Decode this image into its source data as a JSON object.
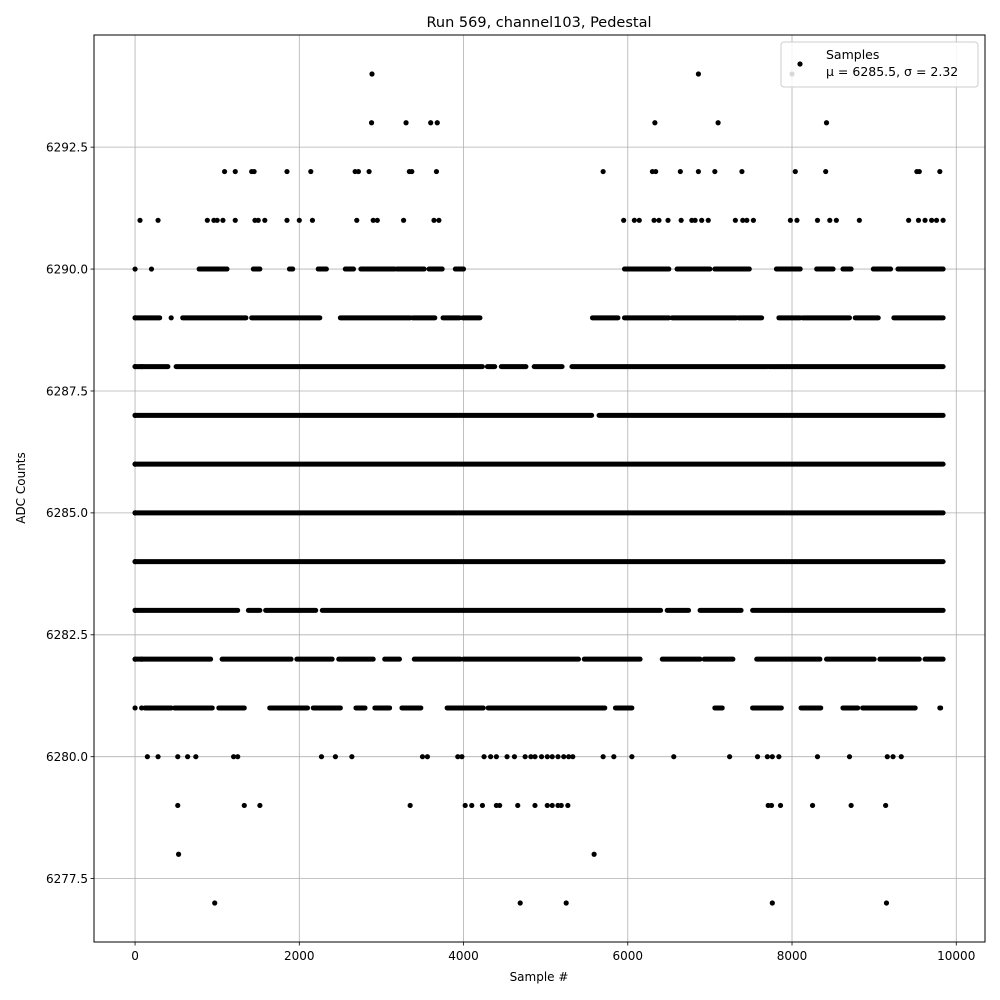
{
  "chart_data": {
    "type": "scatter",
    "title": "Run 569, channel103, Pedestal",
    "xlabel": "Sample #",
    "ylabel": "ADC Counts",
    "xlim": [
      -500,
      10350
    ],
    "ylim": [
      6276.2,
      6294.8
    ],
    "x_ticks": [
      0,
      2000,
      4000,
      6000,
      8000,
      10000
    ],
    "x_tick_labels": [
      "0",
      "2000",
      "4000",
      "6000",
      "8000",
      "10000"
    ],
    "y_ticks": [
      6277.5,
      6280.0,
      6282.5,
      6285.0,
      6287.5,
      6290.0,
      6292.5
    ],
    "y_tick_labels": [
      "6277.5",
      "6280.0",
      "6282.5",
      "6285.0",
      "6287.5",
      "6290.0",
      "6292.5"
    ],
    "grid": true,
    "legend_position": "top-right",
    "marker_color": "#000000",
    "series": [
      {
        "name": "Samples",
        "levels": [
          {
            "y": 6294,
            "x": [
              2885,
              6860,
              8000
            ]
          },
          {
            "y": 6293,
            "x": [
              2880,
              3300,
              3600,
              3680,
              6330,
              7100,
              8420
            ]
          },
          {
            "y": 6292,
            "x": [
              1090,
              1220,
              1420,
              1450,
              1850,
              2140,
              2680,
              2720,
              2850,
              3340,
              3370,
              3670,
              5700,
              6300,
              6340,
              6640,
              6860,
              7060,
              7390,
              8040,
              8410,
              9520,
              9550,
              9800
            ]
          },
          {
            "y": 6291,
            "x": [
              60,
              280,
              880,
              960,
              1000,
              1070,
              1220,
              1460,
              1500,
              1580,
              1850,
              2000,
              2160,
              2700,
              2900,
              2950,
              3270,
              3640,
              3700,
              5950,
              6080,
              6140,
              6320,
              6380,
              6490,
              6650,
              6780,
              6820,
              6900,
              6980,
              7310,
              7400,
              7450,
              7530,
              7980,
              8060,
              8310,
              8460,
              8540,
              8820,
              9420,
              9540,
              9620,
              9700,
              9760,
              9840
            ]
          },
          {
            "y": 6290,
            "x": [
              0,
              200
            ]
          },
          {
            "y": 6289,
            "x": [
              0,
              440
            ]
          },
          {
            "y": 6288,
            "x": [
              0,
              80
            ]
          },
          {
            "y": 6287,
            "x": [
              0
            ]
          },
          {
            "y": 6286,
            "x": [
              0
            ]
          },
          {
            "y": 6285,
            "x": [
              0
            ]
          },
          {
            "y": 6284,
            "x": [
              0
            ]
          },
          {
            "y": 6283,
            "x": [
              0
            ]
          },
          {
            "y": 6282,
            "x": [
              0,
              80
            ]
          },
          {
            "y": 6281,
            "x": [
              0,
              80
            ]
          },
          {
            "y": 6280,
            "x": [
              150,
              280,
              520,
              640,
              740,
              1200,
              1250,
              2270,
              2440,
              2640,
              3500,
              3560,
              3930,
              3980,
              4250,
              4330,
              4400,
              4530,
              4620,
              4750,
              4820,
              4870,
              4950,
              5020,
              5080,
              5150,
              5220,
              5280,
              5330,
              5700,
              5830,
              6050,
              6560,
              7240,
              7580,
              7700,
              7760,
              7840,
              8310,
              8700,
              9160,
              9230,
              9330
            ]
          },
          {
            "y": 6279,
            "x": [
              520,
              1330,
              1520,
              3350,
              4020,
              4100,
              4230,
              4400,
              4440,
              4660,
              4870,
              5020,
              5080,
              5150,
              5190,
              5270,
              7710,
              7750,
              7860,
              8250,
              8720,
              9140
            ]
          },
          {
            "y": 6278,
            "x": [
              530,
              5590
            ]
          },
          {
            "y": 6277,
            "x": [
              970,
              4690,
              5250,
              7760,
              9150
            ]
          }
        ],
        "dense_ranges": [
          {
            "y": 6290,
            "ranges": [
              [
                780,
                1120
              ],
              [
                1440,
                1520
              ],
              [
                1880,
                1920
              ],
              [
                2230,
                2330
              ],
              [
                2560,
                2660
              ],
              [
                2750,
                3160
              ],
              [
                3190,
                3520
              ],
              [
                3580,
                3740
              ],
              [
                3900,
                4000
              ],
              [
                5960,
                6500
              ],
              [
                6600,
                7000
              ],
              [
                7060,
                7480
              ],
              [
                7810,
                8100
              ],
              [
                8300,
                8500
              ],
              [
                8620,
                8720
              ],
              [
                8990,
                9200
              ],
              [
                9290,
                9840
              ]
            ]
          },
          {
            "y": 6289,
            "ranges": [
              [
                0,
                300
              ],
              [
                580,
                1350
              ],
              [
                1420,
                2250
              ],
              [
                2500,
                3350
              ],
              [
                3380,
                3650
              ],
              [
                3750,
                3950
              ],
              [
                3990,
                4200
              ],
              [
                5570,
                5880
              ],
              [
                5960,
                6500
              ],
              [
                6540,
                7320
              ],
              [
                7350,
                7630
              ],
              [
                7840,
                8100
              ],
              [
                8130,
                8700
              ],
              [
                8770,
                9050
              ],
              [
                9240,
                9840
              ]
            ]
          },
          {
            "y": 6288,
            "ranges": [
              [
                0,
                400
              ],
              [
                500,
                4230
              ],
              [
                4290,
                4380
              ],
              [
                4460,
                4760
              ],
              [
                4860,
                5200
              ],
              [
                5320,
                7700
              ],
              [
                7720,
                9840
              ]
            ]
          },
          {
            "y": 6287,
            "ranges": [
              [
                0,
                5560
              ],
              [
                5650,
                9840
              ]
            ]
          },
          {
            "y": 6286,
            "ranges": [
              [
                0,
                9840
              ]
            ]
          },
          {
            "y": 6285,
            "ranges": [
              [
                0,
                9840
              ]
            ]
          },
          {
            "y": 6284,
            "ranges": [
              [
                0,
                9840
              ]
            ]
          },
          {
            "y": 6283,
            "ranges": [
              [
                0,
                1250
              ],
              [
                1380,
                1520
              ],
              [
                1590,
                2200
              ],
              [
                2280,
                6400
              ],
              [
                6480,
                6740
              ],
              [
                6880,
                7380
              ],
              [
                7520,
                9840
              ]
            ]
          },
          {
            "y": 6282,
            "ranges": [
              [
                0,
                920
              ],
              [
                1060,
                1900
              ],
              [
                1970,
                2400
              ],
              [
                2480,
                2900
              ],
              [
                3040,
                3220
              ],
              [
                3400,
                3960
              ],
              [
                4000,
                5400
              ],
              [
                5470,
                6150
              ],
              [
                6420,
                6880
              ],
              [
                6930,
                7280
              ],
              [
                7570,
                8340
              ],
              [
                8420,
                9000
              ],
              [
                9070,
                9550
              ],
              [
                9620,
                9840
              ]
            ]
          },
          {
            "y": 6281,
            "ranges": [
              [
                120,
                440
              ],
              [
                480,
                940
              ],
              [
                1020,
                1330
              ],
              [
                1640,
                2100
              ],
              [
                2170,
                2500
              ],
              [
                2690,
                2800
              ],
              [
                2920,
                3100
              ],
              [
                3250,
                3480
              ],
              [
                3800,
                4240
              ],
              [
                4300,
                5720
              ],
              [
                5850,
                6050
              ],
              [
                7060,
                7150
              ],
              [
                7520,
                7870
              ],
              [
                8110,
                8350
              ],
              [
                8620,
                8800
              ],
              [
                8860,
                9500
              ],
              [
                9800,
                9810
              ]
            ]
          }
        ]
      }
    ],
    "legend": {
      "entry_label": "Samples",
      "stats_line": "μ = 6285.5, σ = 2.32"
    }
  }
}
